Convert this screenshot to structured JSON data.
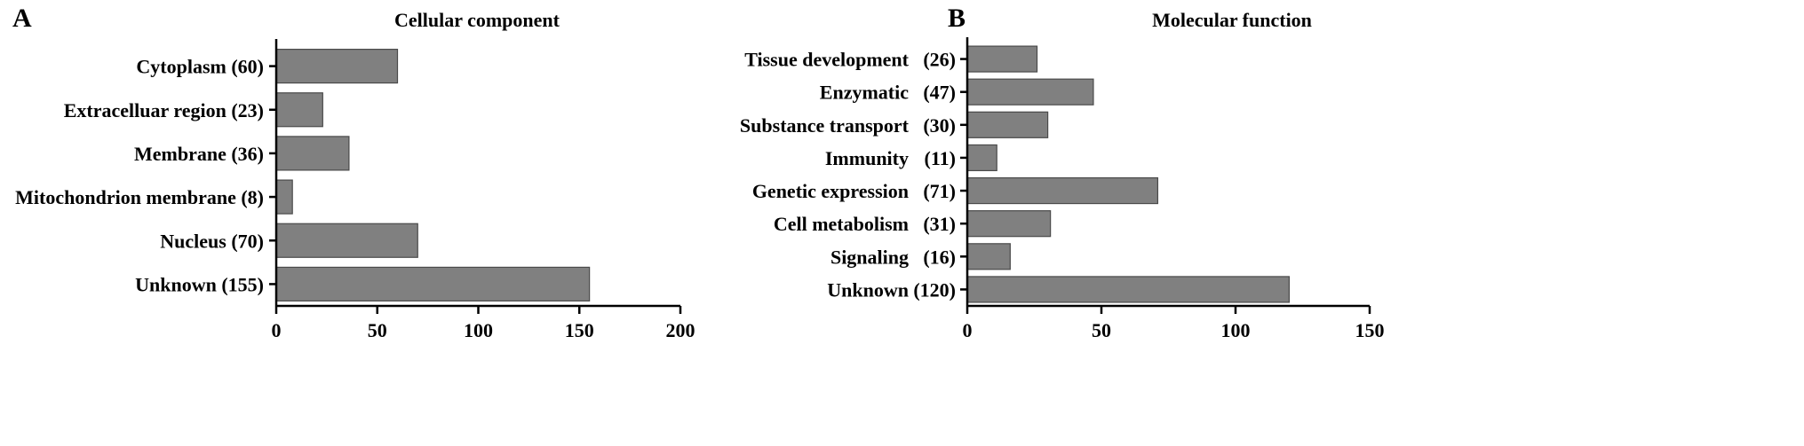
{
  "colors": {
    "bar": "#808080",
    "bar_edge": "#4a4a4a",
    "axis": "#000000"
  },
  "chart_data": [
    {
      "panel": "A",
      "type": "bar",
      "orientation": "horizontal",
      "title": "Cellular component",
      "categories": [
        "Cytoplasm (60)",
        "Extracelluar region (23)",
        "Membrane (36)",
        "Mitochondrion membrane (8)",
        "Nucleus (70)",
        "Unknown (155)"
      ],
      "values": [
        60,
        23,
        36,
        8,
        70,
        155
      ],
      "xlim": [
        0,
        200
      ],
      "xticks": [
        "0",
        "50",
        "100",
        "150",
        "200"
      ],
      "grid": false
    },
    {
      "panel": "B",
      "type": "bar",
      "orientation": "horizontal",
      "title": "Molecular function",
      "categories": [
        "Tissue development (26)",
        "Enzymatic (47)",
        "Substance transport (30)",
        "Immunity (11)",
        "Genetic expression (71)",
        "Cell metabolism (31)",
        "Signaling (16)",
        "Unknown (120)"
      ],
      "cat_names": [
        "Tissue development",
        "Enzymatic",
        "Substance transport",
        "Immunity",
        "Genetic expression",
        "Cell metabolism",
        "Signaling",
        "Unknown"
      ],
      "cat_counts": [
        "(26)",
        "(47)",
        "(30)",
        "(11)",
        "(71)",
        "(31)",
        "(16)",
        "(120)"
      ],
      "values": [
        26,
        47,
        30,
        11,
        71,
        31,
        16,
        120
      ],
      "xlim": [
        0,
        150
      ],
      "xticks": [
        "0",
        "50",
        "100",
        "150"
      ],
      "grid": false
    }
  ]
}
